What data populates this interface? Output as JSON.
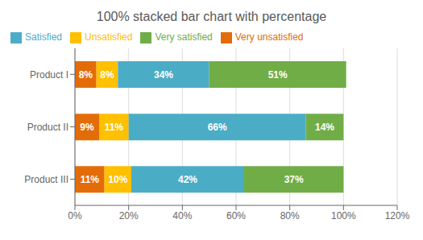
{
  "chart_data": {
    "type": "bar",
    "title": "100% stacked bar chart with percentage",
    "orientation": "horizontal",
    "stacked": true,
    "data_labels": true,
    "categories": [
      "Product I",
      "Product II",
      "Product III"
    ],
    "series": [
      {
        "name": "Very unsatisfied",
        "color": "#E36C09",
        "values": [
          8,
          9,
          11
        ],
        "value_labels": [
          "8%",
          "9%",
          "11%"
        ]
      },
      {
        "name": "Unsatisfied",
        "color": "#FFC000",
        "values": [
          8,
          11,
          10
        ],
        "value_labels": [
          "8%",
          "11%",
          "10%"
        ]
      },
      {
        "name": "Satisfied",
        "color": "#4BACC6",
        "values": [
          34,
          66,
          42
        ],
        "value_labels": [
          "34%",
          "66%",
          "42%"
        ]
      },
      {
        "name": "Very satisfied",
        "color": "#70AD47",
        "values": [
          51,
          14,
          37
        ],
        "value_labels": [
          "51%",
          "14%",
          "37%"
        ]
      }
    ],
    "xlim": [
      0,
      120
    ],
    "xticks": [
      {
        "value": 0,
        "label": "0%"
      },
      {
        "value": 20,
        "label": "20%"
      },
      {
        "value": 40,
        "label": "40%"
      },
      {
        "value": 60,
        "label": "60%"
      },
      {
        "value": 80,
        "label": "80%"
      },
      {
        "value": 100,
        "label": "100%"
      },
      {
        "value": 120,
        "label": "120%"
      }
    ],
    "grid": true,
    "legend": "top"
  }
}
